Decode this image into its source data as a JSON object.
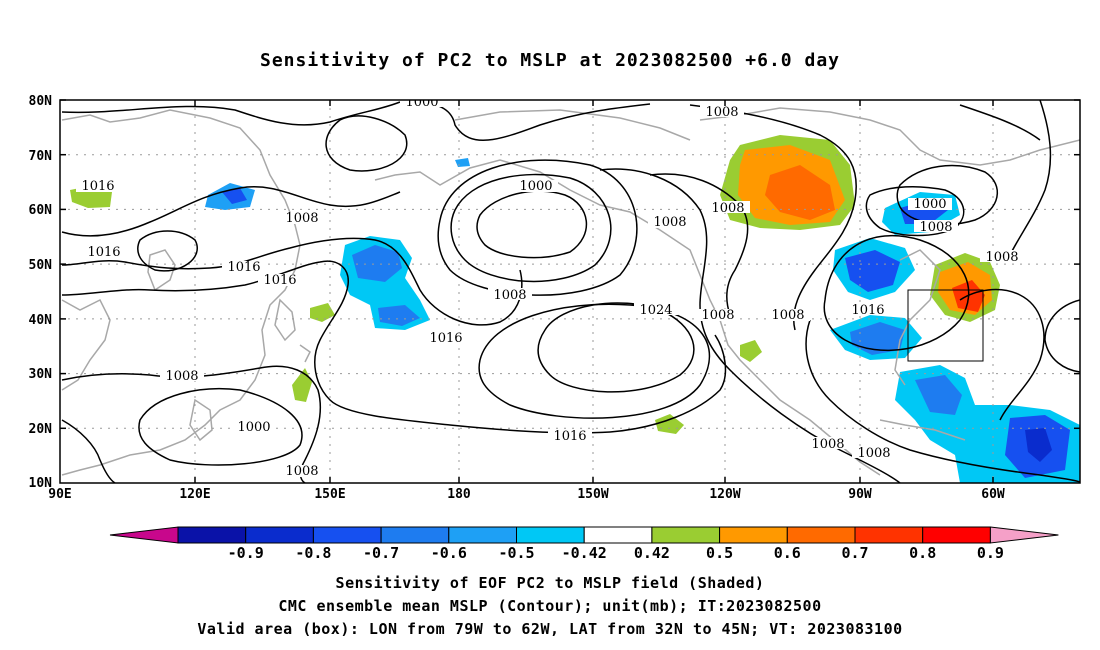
{
  "title": "Sensitivity of PC2 to MSLP at 2023082500 +6.0 day",
  "captions": [
    "Sensitivity of EOF PC2 to MSLP field (Shaded)",
    "CMC ensemble mean MSLP (Contour); unit(mb); IT:2023082500",
    "Valid area (box): LON from 79W to 62W, LAT from 32N to 45N; VT: 2023083100"
  ],
  "axes": {
    "x_ticks": [
      "90E",
      "120E",
      "150E",
      "180",
      "150W",
      "120W",
      "90W",
      "60W"
    ],
    "y_ticks": [
      "80N",
      "70N",
      "60N",
      "50N",
      "40N",
      "30N",
      "20N",
      "10N"
    ]
  },
  "colorbar": {
    "labels": [
      "-0.9",
      "-0.8",
      "-0.7",
      "-0.6",
      "-0.5",
      "-0.42",
      "0.42",
      "0.5",
      "0.6",
      "0.7",
      "0.8",
      "0.9"
    ],
    "colors": [
      "#c8078c",
      "#0a12a8",
      "#0a2ccd",
      "#1650f0",
      "#1e7cf0",
      "#1ea0f5",
      "#00c8f5",
      "#ffffff",
      "#9acd32",
      "#ff9900",
      "#ff6a00",
      "#ff3300",
      "#ff0000",
      "#f5a0c8"
    ]
  },
  "contour_labels": [
    "1000",
    "1016",
    "1008",
    "1016",
    "1016",
    "1016",
    "1000",
    "1008",
    "1016",
    "1008",
    "1024",
    "1016",
    "1008",
    "1008",
    "1000",
    "1008",
    "1008",
    "1008",
    "1008",
    "1000",
    "1008",
    "1016",
    "1008",
    "1008",
    "1008"
  ],
  "valid_box": {
    "lon_from": "79W",
    "lon_to": "62W",
    "lat_from": "32N",
    "lat_to": "45N"
  }
}
